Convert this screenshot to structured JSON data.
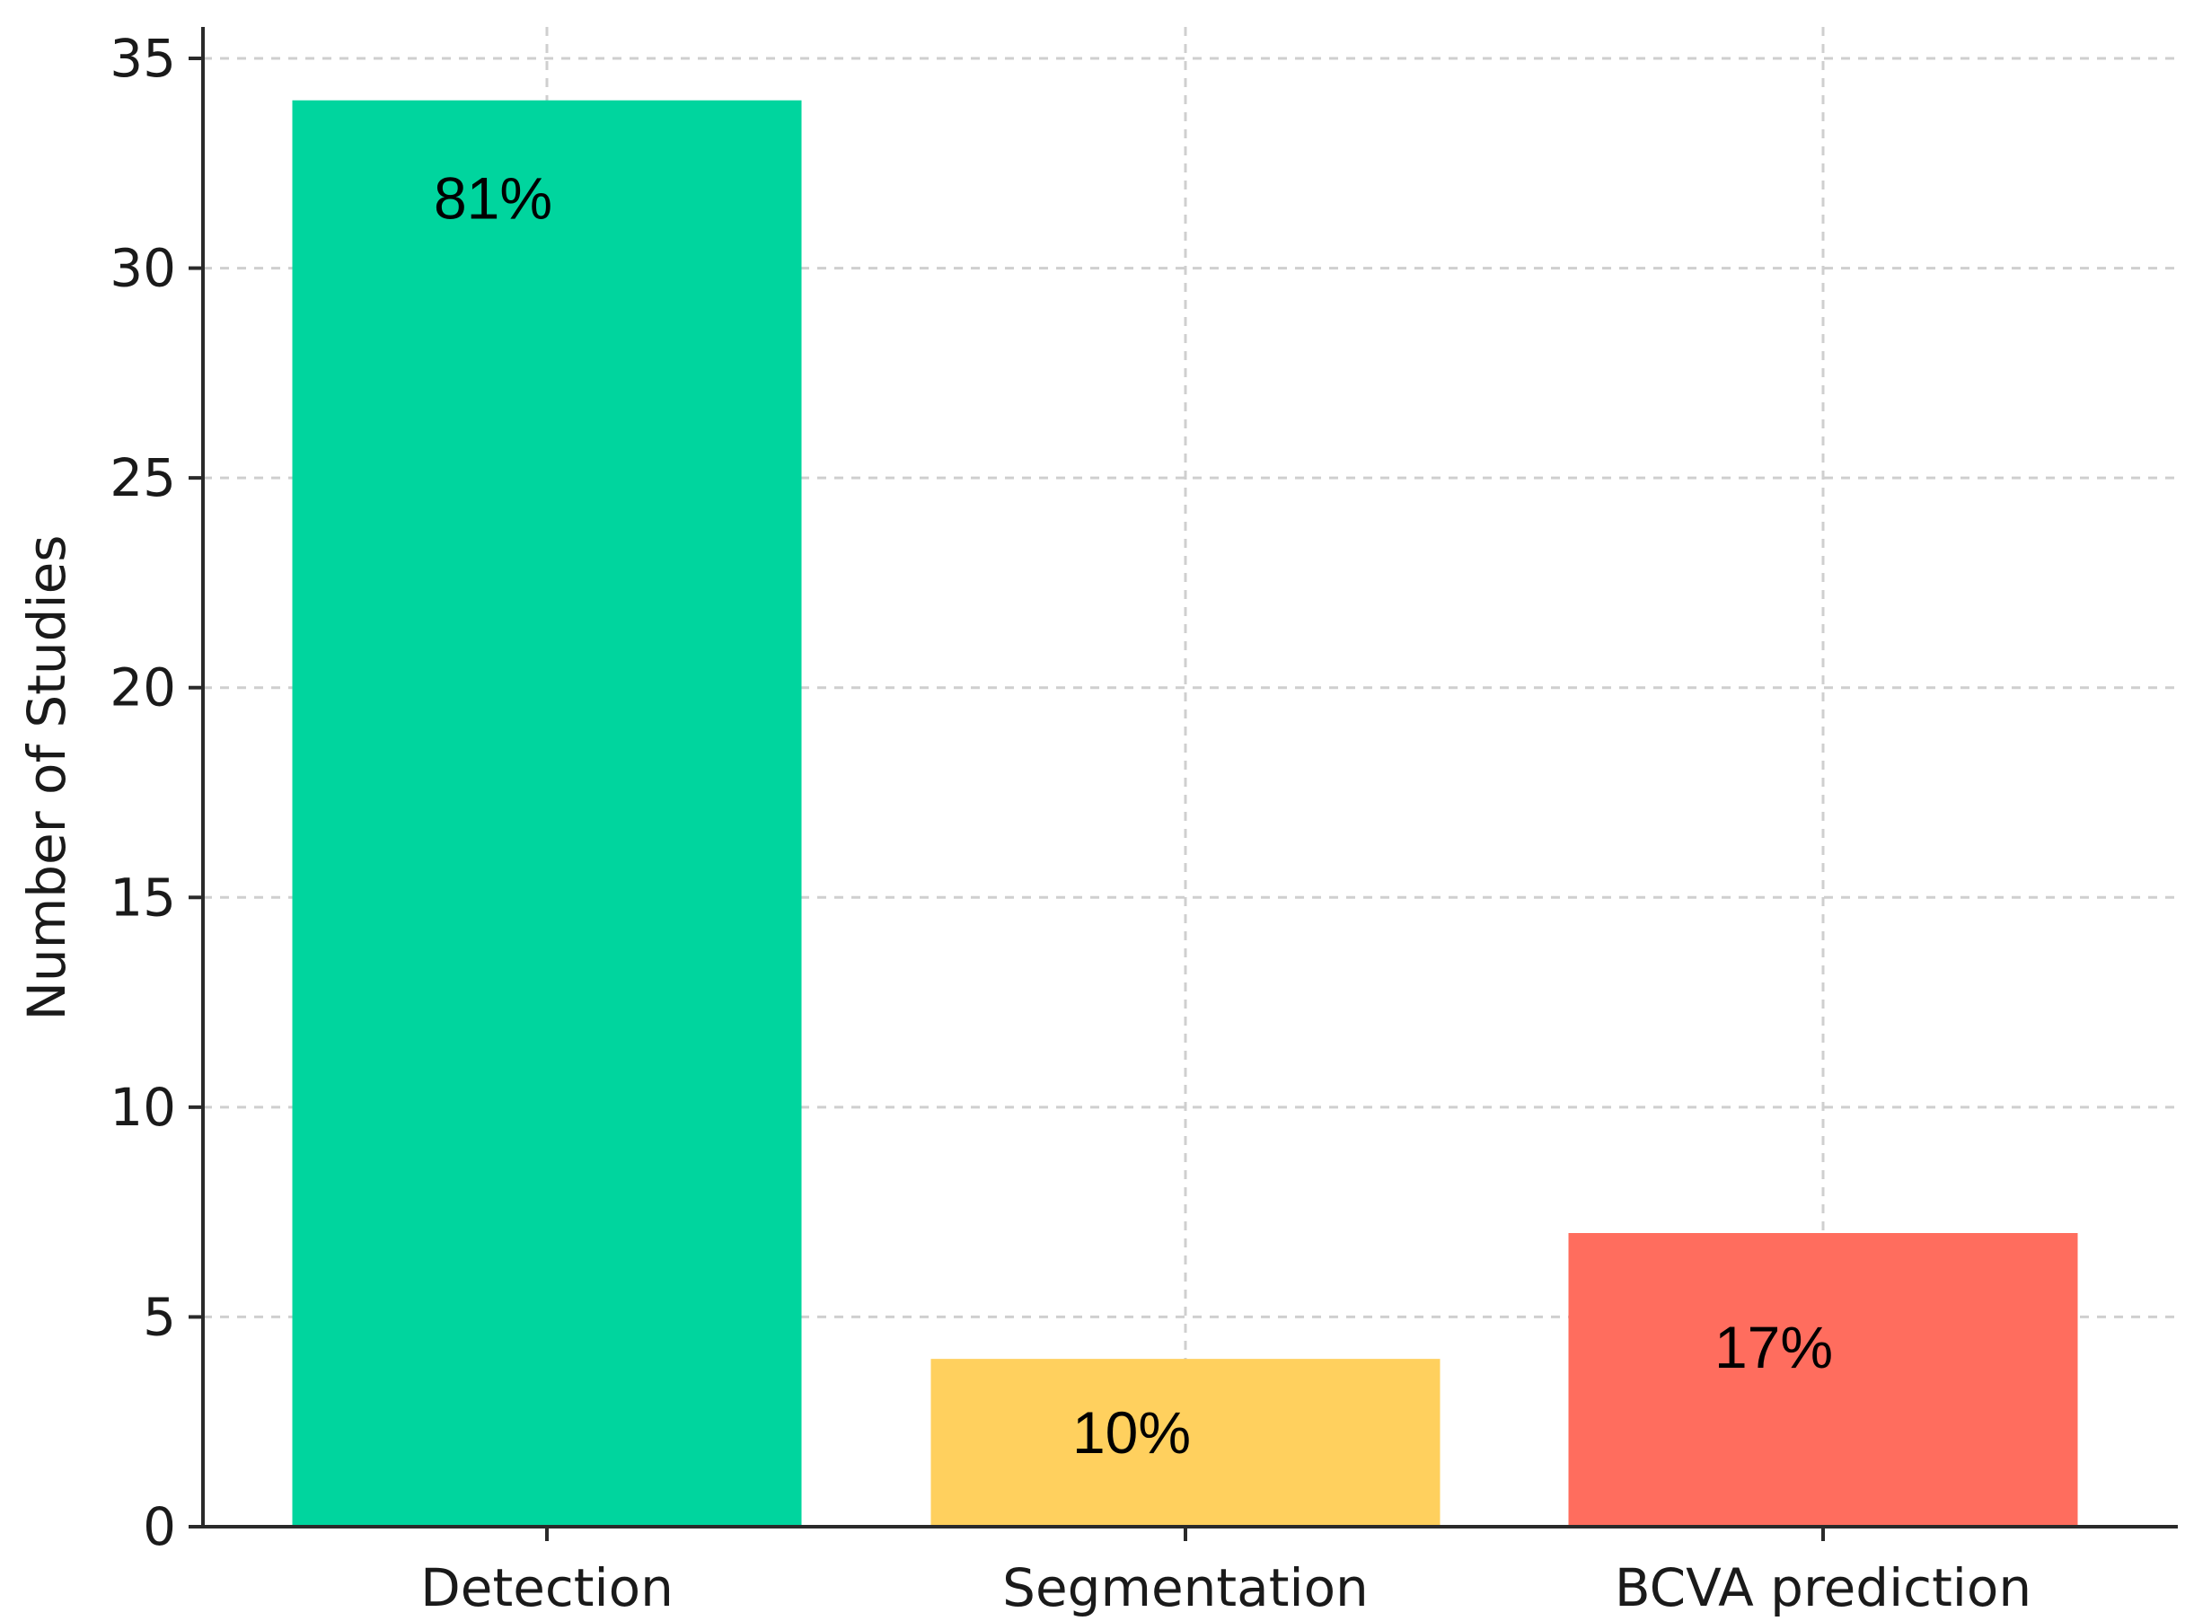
{
  "chart_data": {
    "type": "bar",
    "categories": [
      "Detection",
      "Segmentation",
      "BCVA prediction"
    ],
    "values": [
      34,
      4,
      7
    ],
    "data_labels": [
      "81%",
      "10%",
      "17%"
    ],
    "colors": [
      "#00d59e",
      "#ffd05e",
      "#ff6d5e"
    ],
    "title": "",
    "xlabel": "",
    "ylabel": "Number of Studies",
    "ylim": [
      0,
      35
    ],
    "yticks": [
      "0",
      "5",
      "10",
      "15",
      "20",
      "25",
      "30",
      "35"
    ],
    "grid": true,
    "legend": "none"
  }
}
